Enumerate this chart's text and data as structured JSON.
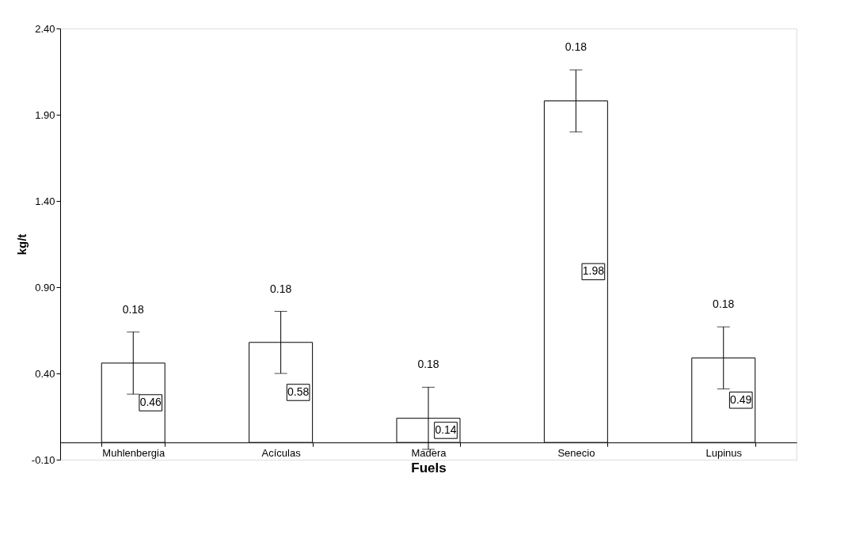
{
  "chart_data": {
    "type": "bar",
    "xlabel": "Fuels",
    "ylabel": "kg/t",
    "categories": [
      "Muhlenbergia",
      "Acículas",
      "Madera",
      "Senecio",
      "Lupinus"
    ],
    "series": [
      {
        "color": "#ffffff",
        "values": [
          0.46,
          0.58,
          0.14,
          1.98,
          0.49
        ],
        "errors": [
          0.18,
          0.18,
          0.18,
          0.18,
          0.18
        ],
        "value_labels": [
          "0.46",
          "0.58",
          "0.14",
          "1.98",
          "0.49"
        ]
      }
    ],
    "ylim": [
      -0.1,
      2.4
    ],
    "yticks": [
      {
        "value": -0.1,
        "label": "-0.10"
      },
      {
        "value": 0.4,
        "label": "0.40"
      },
      {
        "value": 0.9,
        "label": "0.90"
      },
      {
        "value": 1.4,
        "label": "1.40"
      },
      {
        "value": 1.9,
        "label": "1.90"
      },
      {
        "value": 2.4,
        "label": "2.40"
      }
    ],
    "annotations": [
      "0.18",
      "0.18",
      "0.18",
      "0.18",
      "0.18"
    ],
    "grid": false
  }
}
